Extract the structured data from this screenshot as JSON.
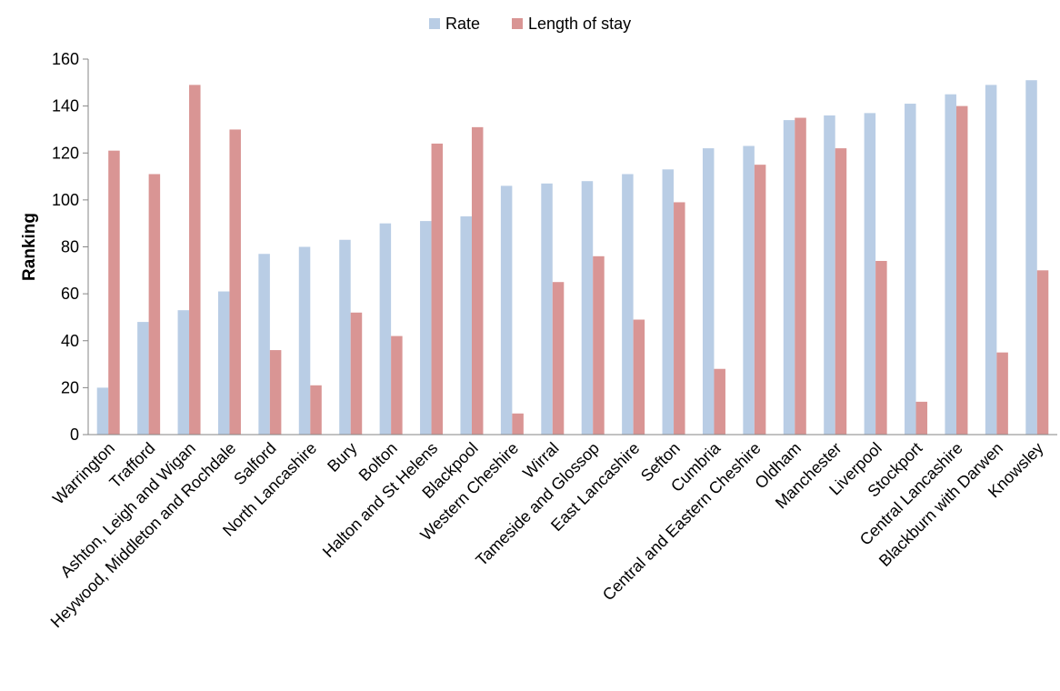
{
  "chart_data": {
    "type": "bar",
    "title": "",
    "xlabel": "",
    "ylabel": "Ranking",
    "ylim": [
      0,
      160
    ],
    "yticks": [
      0,
      20,
      40,
      60,
      80,
      100,
      120,
      140,
      160
    ],
    "grid": false,
    "legend_position": "top-center",
    "categories": [
      "Warrington",
      "Trafford",
      "Ashton, Leigh and Wigan",
      "Heywood, Middleton and Rochdale",
      "Salford",
      "North Lancashire",
      "Bury",
      "Bolton",
      "Halton and St Helens",
      "Blackpool",
      "Western Cheshire",
      "Wirral",
      "Tameside and Glossop",
      "East Lancashire",
      "Sefton",
      "Cumbria",
      "Central and Eastern Cheshire",
      "Oldham",
      "Manchester",
      "Liverpool",
      "Stockport",
      "Central Lancashire",
      "Blackburn with Darwen",
      "Knowsley"
    ],
    "series": [
      {
        "name": "Rate",
        "color": "#b9cde5",
        "values": [
          20,
          48,
          53,
          61,
          77,
          80,
          83,
          90,
          91,
          93,
          106,
          107,
          108,
          111,
          113,
          122,
          123,
          134,
          136,
          137,
          141,
          145,
          149,
          151
        ]
      },
      {
        "name": "Length of stay",
        "color": "#d99594",
        "values": [
          121,
          111,
          149,
          130,
          36,
          21,
          52,
          42,
          124,
          131,
          9,
          65,
          76,
          49,
          99,
          28,
          115,
          135,
          122,
          74,
          14,
          140,
          35,
          70
        ]
      }
    ]
  }
}
